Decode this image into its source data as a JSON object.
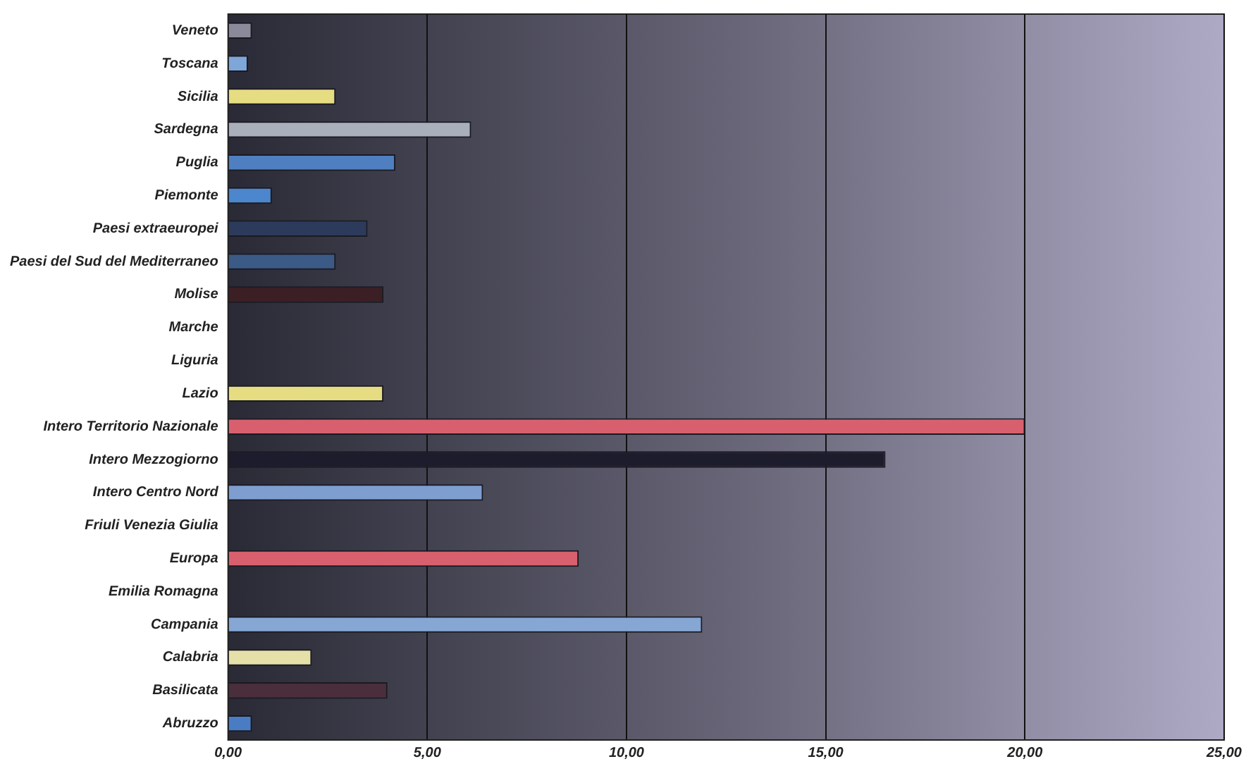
{
  "chart_data": {
    "type": "bar",
    "orientation": "horizontal",
    "categories": [
      "Veneto",
      "Toscana",
      "Sicilia",
      "Sardegna",
      "Puglia",
      "Piemonte",
      "Paesi extraeuropei",
      "Paesi del Sud del Mediterraneo",
      "Molise",
      "Marche",
      "Liguria",
      "Lazio",
      "Intero Territorio Nazionale",
      "Intero Mezzogiorno",
      "Intero Centro Nord",
      "Friuli Venezia Giulia",
      "Europa",
      "Emilia Romagna",
      "Campania",
      "Calabria",
      "Basilicata",
      "Abruzzo"
    ],
    "values": [
      0.6,
      0.5,
      2.7,
      6.1,
      4.2,
      1.1,
      3.5,
      2.7,
      3.9,
      0,
      0,
      3.9,
      20.0,
      16.5,
      6.4,
      0,
      8.8,
      0,
      11.9,
      2.1,
      4.0,
      0.6
    ],
    "colors": [
      "#8a8a9a",
      "#7fa6d8",
      "#e6dc82",
      "#a9b0bc",
      "#4f7fc0",
      "#4c86cc",
      "#2c3a5c",
      "#3b5a86",
      "#3c1f24",
      "#444444",
      "#444444",
      "#e6dc82",
      "#d8606e",
      "#1c1c2c",
      "#7e9ed0",
      "#444444",
      "#d8606e",
      "#444444",
      "#86a6d4",
      "#e4e0a8",
      "#4a2e3c",
      "#4a7cc4"
    ],
    "xlim": [
      0,
      25
    ],
    "xticks": [
      {
        "value": 0,
        "label": "0,00"
      },
      {
        "value": 5,
        "label": "5,00"
      },
      {
        "value": 10,
        "label": "10,00"
      },
      {
        "value": 15,
        "label": "15,00"
      },
      {
        "value": 20,
        "label": "20,00"
      },
      {
        "value": 25,
        "label": "25,00"
      }
    ],
    "grid": "x",
    "legend": false
  }
}
